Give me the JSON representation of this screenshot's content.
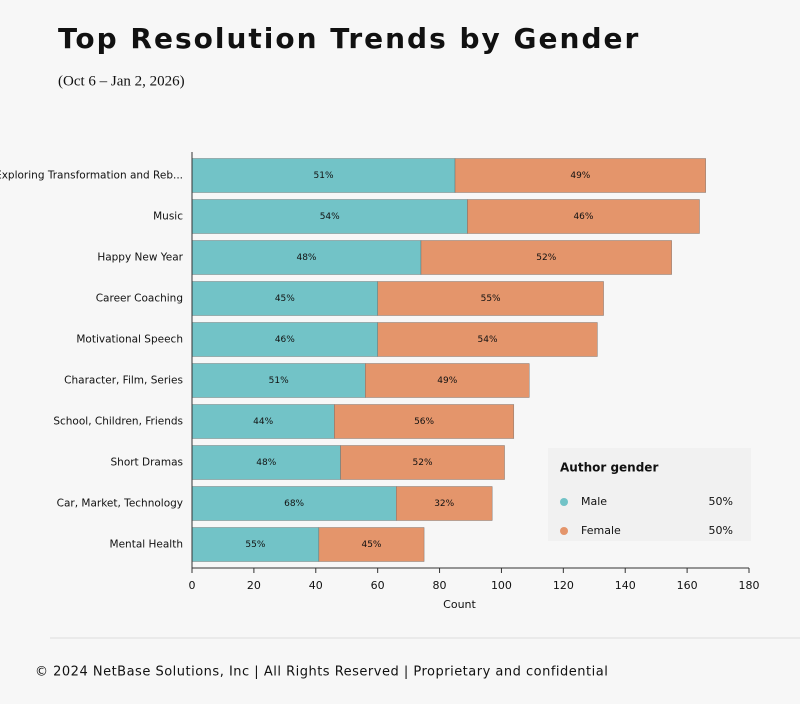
{
  "chart_data": {
    "type": "stacked-bar-horizontal",
    "title": "Top Resolution Trends by Gender",
    "subtitle": "(Oct 6 – Jan 2, 2026)",
    "x_label": "Count",
    "categories": [
      "Exploring Transformation and Reb...",
      "Music",
      "Happy New Year",
      "Career Coaching",
      "Motivational Speech",
      "Character, Film, Series",
      "School, Children, Friends",
      "Short Dramas",
      "Car, Market, Technology",
      "Mental Health"
    ],
    "series": [
      {
        "name": "Male",
        "color": "#72c3c7",
        "values": [
          85,
          89,
          74,
          60,
          60,
          56,
          46,
          48,
          66,
          41
        ],
        "value_labels": [
          "51%",
          "54%",
          "48%",
          "45%",
          "46%",
          "51%",
          "44%",
          "48%",
          "68%",
          "55%"
        ],
        "legend_value": "50%"
      },
      {
        "name": "Female",
        "color": "#e4956b",
        "values": [
          81,
          75,
          81,
          73,
          71,
          53,
          58,
          53,
          31,
          34
        ],
        "value_labels": [
          "49%",
          "46%",
          "52%",
          "55%",
          "54%",
          "49%",
          "56%",
          "52%",
          "32%",
          "45%"
        ],
        "legend_value": "50%"
      }
    ],
    "legend_title": "Author gender",
    "xlim": [
      0,
      180
    ],
    "xticks": [
      0,
      20,
      40,
      60,
      80,
      100,
      120,
      140,
      160,
      180
    ],
    "footer": "© 2024 NetBase Solutions, Inc | All Rights Reserved | Proprietary and confidential"
  }
}
